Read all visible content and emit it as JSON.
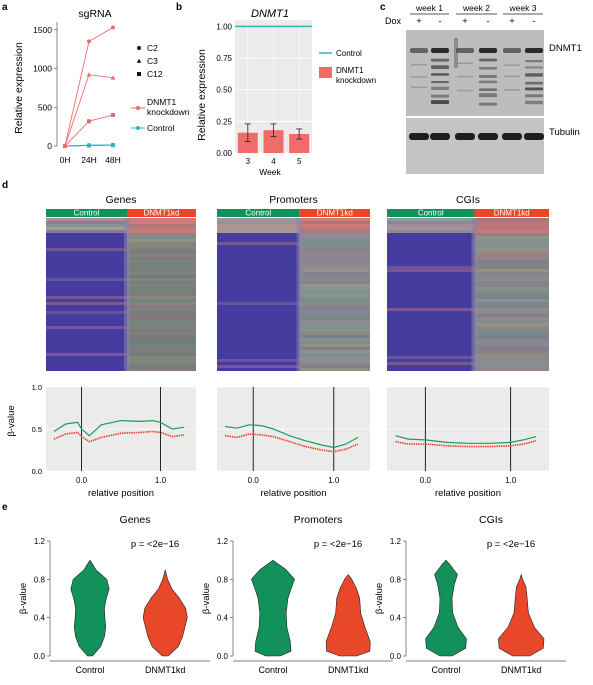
{
  "panels": {
    "a": {
      "letter": "a",
      "chart_data": {
        "type": "line",
        "title": "sgRNA",
        "ylabel": "Relative expression",
        "categories": [
          "0H",
          "24H",
          "48H"
        ],
        "yticks": [
          "0",
          "500",
          "1000",
          "1500"
        ],
        "ylim": [
          0,
          1600
        ],
        "legend_markers": [
          "C2",
          "C3",
          "C12"
        ],
        "series": [
          {
            "name": "DNMT1 knockdown",
            "line": [
              "DNMT1",
              "knockdown"
            ],
            "color": "#f26b6b",
            "lines": [
              [
                0,
                1350,
                1530
              ],
              [
                0,
                920,
                880
              ],
              [
                0,
                320,
                400
              ]
            ]
          },
          {
            "name": "Control",
            "color": "#2bb5c5",
            "lines": [
              [
                0,
                10,
                15
              ],
              [
                0,
                8,
                12
              ],
              [
                0,
                5,
                10
              ]
            ]
          }
        ]
      }
    },
    "b": {
      "letter": "b",
      "chart_data": {
        "type": "bar",
        "title": "DNMT1",
        "ylabel": "Relative expression",
        "xlabel": "Week",
        "categories": [
          "3",
          "4",
          "5"
        ],
        "yticks": [
          "0.00",
          "0.25",
          "0.50",
          "0.75",
          "1.00"
        ],
        "ylim": [
          0,
          1.05
        ],
        "series": [
          {
            "name": "Control",
            "color": "#2bb5c5",
            "values": [
              1.0,
              1.0,
              1.0
            ]
          },
          {
            "name": "DNMT1 knockdown",
            "line": [
              "DNMT1",
              "knockdown"
            ],
            "color": "#f26b6b",
            "values": [
              0.16,
              0.18,
              0.15
            ],
            "errors": [
              0.07,
              0.05,
              0.04
            ]
          }
        ]
      }
    },
    "c": {
      "letter": "c",
      "dox_label": "Dox",
      "weeks": [
        "week 1",
        "week 2",
        "week 3"
      ],
      "signs": [
        "+",
        "-",
        "+",
        "-",
        "+",
        "-"
      ],
      "blot_labels": [
        "DNMT1",
        "Tubulin"
      ]
    },
    "d": {
      "letter": "d",
      "heatmaps": [
        {
          "title": "Genes",
          "control": "Control",
          "kd": "DNMT1kd"
        },
        {
          "title": "Promoters",
          "control": "Control",
          "kd": "DNMT1kd"
        },
        {
          "title": "CGIs",
          "control": "Control",
          "kd": "DNMT1kd"
        }
      ],
      "chart_data": {
        "type": "line",
        "ylabel": "β-value",
        "xlabel": "relative position",
        "xticks": [
          "0.0",
          "1.0"
        ],
        "yticks": [
          "0.0",
          "0.5",
          "1.0"
        ],
        "ylim": [
          0,
          1
        ],
        "colors": {
          "control": "#1e9b5c",
          "kd": "#e9452c"
        },
        "panels": [
          {
            "title": "Genes",
            "x": [
              -0.35,
              -0.2,
              -0.05,
              0.0,
              0.1,
              0.25,
              0.5,
              0.75,
              0.9,
              1.0,
              1.15,
              1.3
            ],
            "control": [
              0.47,
              0.56,
              0.58,
              0.5,
              0.42,
              0.55,
              0.6,
              0.59,
              0.6,
              0.58,
              0.5,
              0.52
            ],
            "kd": [
              0.38,
              0.44,
              0.46,
              0.41,
              0.35,
              0.4,
              0.45,
              0.46,
              0.47,
              0.46,
              0.41,
              0.43
            ]
          },
          {
            "title": "Promoters",
            "x": [
              -0.35,
              -0.2,
              -0.05,
              0.1,
              0.25,
              0.45,
              0.65,
              0.85,
              1.0,
              1.15,
              1.3
            ],
            "control": [
              0.53,
              0.51,
              0.55,
              0.54,
              0.5,
              0.42,
              0.36,
              0.31,
              0.28,
              0.32,
              0.4
            ],
            "kd": [
              0.42,
              0.4,
              0.44,
              0.43,
              0.41,
              0.35,
              0.29,
              0.25,
              0.23,
              0.26,
              0.32
            ]
          },
          {
            "title": "CGIs",
            "x": [
              -0.35,
              -0.2,
              0.0,
              0.25,
              0.5,
              0.75,
              1.0,
              1.15,
              1.3
            ],
            "control": [
              0.42,
              0.38,
              0.37,
              0.34,
              0.33,
              0.33,
              0.34,
              0.37,
              0.41
            ],
            "kd": [
              0.35,
              0.32,
              0.32,
              0.3,
              0.29,
              0.29,
              0.3,
              0.32,
              0.36
            ]
          }
        ]
      }
    },
    "e": {
      "letter": "e",
      "chart_data": {
        "type": "violin",
        "ylabel": "β-value",
        "yticks": [
          "0.0",
          "0.4",
          "0.8",
          "1.2"
        ],
        "ylim": [
          0,
          1.2
        ],
        "categories": [
          "Control",
          "DNMT1kd"
        ],
        "colors": {
          "control": "#12925a",
          "kd": "#e8472a"
        },
        "panels": [
          {
            "title": "Genes",
            "pvalue": "p = <2e−16",
            "control": [
              [
                0.0,
                0.1
              ],
              [
                0.1,
                0.45
              ],
              [
                0.2,
                0.6
              ],
              [
                0.3,
                0.66
              ],
              [
                0.4,
                0.62
              ],
              [
                0.5,
                0.6
              ],
              [
                0.6,
                0.68
              ],
              [
                0.7,
                0.8
              ],
              [
                0.8,
                0.7
              ],
              [
                0.9,
                0.25
              ],
              [
                1.0,
                0.0
              ]
            ],
            "kd": [
              [
                0.0,
                0.12
              ],
              [
                0.1,
                0.55
              ],
              [
                0.2,
                0.72
              ],
              [
                0.3,
                0.82
              ],
              [
                0.4,
                0.92
              ],
              [
                0.5,
                0.85
              ],
              [
                0.6,
                0.6
              ],
              [
                0.7,
                0.28
              ],
              [
                0.8,
                0.1
              ],
              [
                0.9,
                0.0
              ]
            ]
          },
          {
            "title": "Promoters",
            "pvalue": "p = <2e−16",
            "control": [
              [
                0.0,
                0.3
              ],
              [
                0.05,
                0.75
              ],
              [
                0.15,
                0.72
              ],
              [
                0.3,
                0.58
              ],
              [
                0.45,
                0.55
              ],
              [
                0.6,
                0.62
              ],
              [
                0.7,
                0.75
              ],
              [
                0.8,
                0.9
              ],
              [
                0.9,
                0.55
              ],
              [
                1.0,
                0.0
              ]
            ],
            "kd": [
              [
                0.0,
                0.35
              ],
              [
                0.05,
                0.9
              ],
              [
                0.15,
                0.92
              ],
              [
                0.3,
                0.7
              ],
              [
                0.45,
                0.52
              ],
              [
                0.6,
                0.48
              ],
              [
                0.7,
                0.35
              ],
              [
                0.8,
                0.15
              ],
              [
                0.85,
                0.0
              ]
            ]
          },
          {
            "title": "CGIs",
            "pvalue": "p = <2e−16",
            "control": [
              [
                0.0,
                0.25
              ],
              [
                0.08,
                0.82
              ],
              [
                0.18,
                0.85
              ],
              [
                0.3,
                0.5
              ],
              [
                0.45,
                0.28
              ],
              [
                0.6,
                0.25
              ],
              [
                0.75,
                0.35
              ],
              [
                0.85,
                0.48
              ],
              [
                0.95,
                0.18
              ],
              [
                1.0,
                0.0
              ]
            ],
            "kd": [
              [
                0.0,
                0.35
              ],
              [
                0.08,
                0.92
              ],
              [
                0.18,
                0.95
              ],
              [
                0.3,
                0.55
              ],
              [
                0.45,
                0.3
              ],
              [
                0.6,
                0.25
              ],
              [
                0.72,
                0.2
              ],
              [
                0.8,
                0.06
              ],
              [
                0.85,
                0.0
              ]
            ]
          }
        ]
      }
    }
  }
}
